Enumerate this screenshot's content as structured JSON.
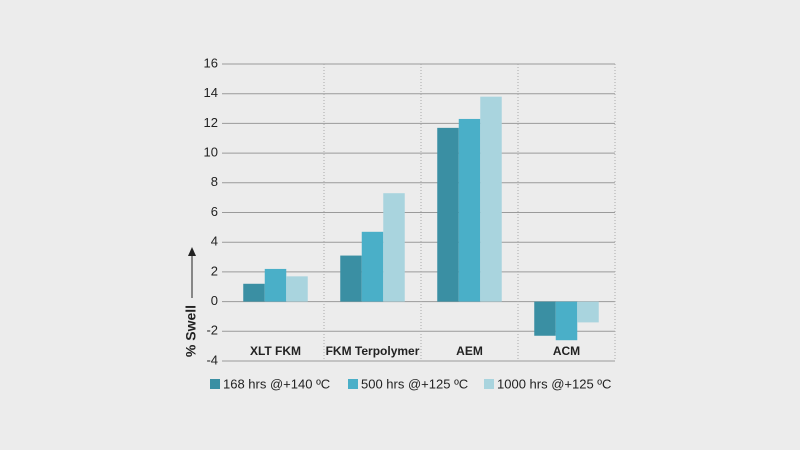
{
  "chart_data": {
    "type": "bar",
    "y_label": "% Swell",
    "categories": [
      "XLT FKM",
      "FKM Terpolymer",
      "AEM",
      "ACM"
    ],
    "series": [
      {
        "name": "168 hrs @+140 ºC",
        "color": "#3a8fa3",
        "values": [
          1.2,
          3.1,
          11.7,
          -2.3
        ]
      },
      {
        "name": "500 hrs @+125 ºC",
        "color": "#4aafc8",
        "values": [
          2.2,
          4.7,
          12.3,
          -2.6
        ]
      },
      {
        "name": "1000 hrs @+125 ºC",
        "color": "#a9d4de",
        "values": [
          1.7,
          7.3,
          13.8,
          -1.4
        ]
      }
    ],
    "ylim": [
      -4,
      16
    ],
    "yticks": [
      -4,
      -2,
      0,
      2,
      4,
      6,
      8,
      10,
      12,
      14,
      16
    ],
    "grid": true
  }
}
